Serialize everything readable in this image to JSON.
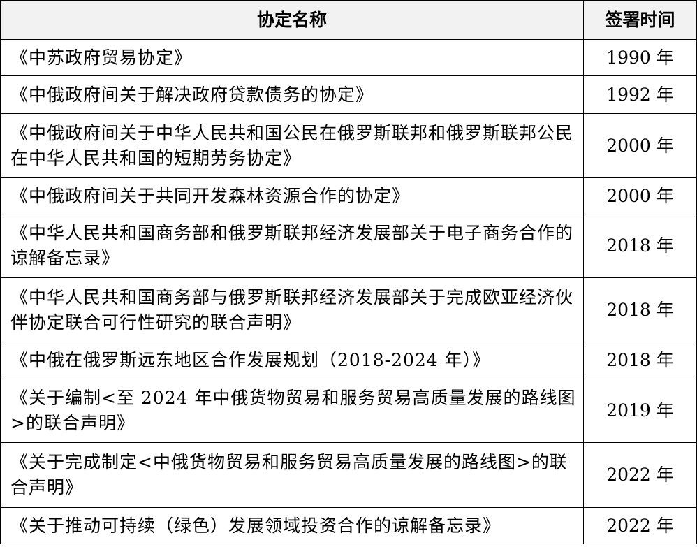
{
  "table": {
    "header": [
      "协定名称",
      "签署时间"
    ],
    "rows": [
      [
        "《中苏政府贸易协定》",
        "1990 年"
      ],
      [
        "《中俄政府间关于解决政府贷款债务的协定》",
        "1992 年"
      ],
      [
        "《中俄政府间关于中华人民共和国公民在俄罗斯联邦和俄罗斯联邦公民在中华人民共和国的短期劳务协定》",
        "2000 年"
      ],
      [
        "《中俄政府间关于共同开发森林资源合作的协定》",
        "2000 年"
      ],
      [
        "《中华人民共和国商务部和俄罗斯联邦经济发展部关于电子商务合作的谅解备忘录》",
        "2018 年"
      ],
      [
        "《中华人民共和国商务部与俄罗斯联邦经济发展部关于完成欧亚经济伙伴协定联合可行性研究的联合声明》",
        "2018 年"
      ],
      [
        "《中俄在俄罗斯远东地区合作发展规划（2018-2024 年）》",
        "2018 年"
      ],
      [
        "《关于编制<至 2024 年中俄货物贸易和服务贸易高质量发展的路线图>的联合声明》",
        "2019 年"
      ],
      [
        "《关于完成制定<中俄货物贸易和服务贸易高质量发展的路线图>的联合声明》",
        "2022 年"
      ],
      [
        "《关于推动可持续（绿色）发展领域投资合作的谅解备忘录》",
        "2022 年"
      ]
    ]
  }
}
